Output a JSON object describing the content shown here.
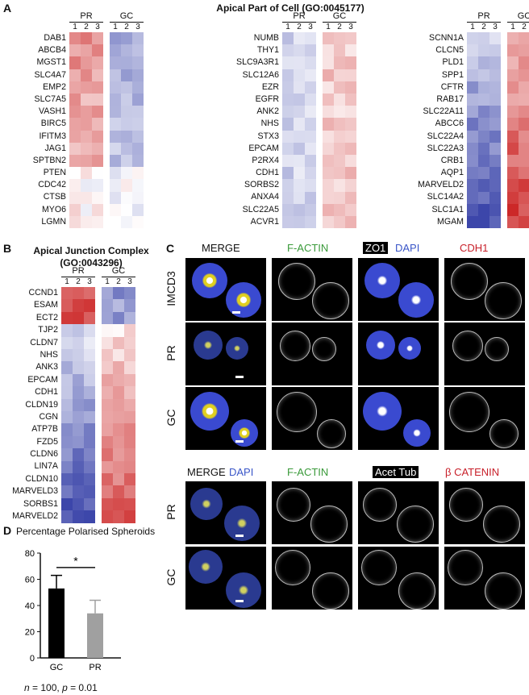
{
  "panel_letters": {
    "a": "A",
    "b": "B",
    "c": "C",
    "d": "D"
  },
  "panel_a": {
    "title": "Apical Part of Cell (GO:0045177)",
    "group_labels": [
      "PR",
      "GC"
    ],
    "replicates": [
      "1",
      "2",
      "3"
    ],
    "heatmap_left": {
      "genes": [
        "DAB1",
        "ABCB4",
        "MGST1",
        "SLC4A7",
        "EMP2",
        "SLC7A5",
        "VASH1",
        "BIRC5",
        "IFITM3",
        "JAG1",
        "SPTBN2",
        "PTEN",
        "CDC42",
        "CTSB",
        "MYO6",
        "LGMN"
      ]
    },
    "heatmap_mid": {
      "genes": [
        "NUMB",
        "THY1",
        "SLC9A3R1",
        "SLC12A6",
        "EZR",
        "EGFR",
        "ANK2",
        "NHS",
        "STX3",
        "EPCAM",
        "P2RX4",
        "CDH1",
        "SORBS2",
        "ANXA4",
        "SLC22A5",
        "ACVR1"
      ]
    },
    "heatmap_right": {
      "genes": [
        "SCNN1A",
        "CLCN5",
        "PLD1",
        "SPP1",
        "CFTR",
        "RAB17",
        "SLC22A11",
        "ABCC6",
        "SLC22A4",
        "SLC22A3",
        "CRB1",
        "AQP1",
        "MARVELD2",
        "SLC14A2",
        "SLC1A1",
        "MGAM"
      ]
    }
  },
  "panel_b": {
    "title_line1": "Apical Junction Complex",
    "title_line2": "(GO:0043296)",
    "group_labels": [
      "PR",
      "GC"
    ],
    "replicates": [
      "1",
      "2",
      "3"
    ],
    "genes": [
      "CCND1",
      "ESAM",
      "ECT2",
      "TJP2",
      "CLDN7",
      "NHS",
      "ANK3",
      "EPCAM",
      "CDH1",
      "CLDN19",
      "CGN",
      "ATP7B",
      "FZD5",
      "CLDN6",
      "LIN7A",
      "CLDN10",
      "MARVELD3",
      "SORBS1",
      "MARVELD2"
    ]
  },
  "panel_c": {
    "top_headers": [
      {
        "text": "MERGE",
        "color": "#111111"
      },
      {
        "text": "F-ACTIN",
        "color": "#3a9a3a"
      },
      {
        "text": "ZO1",
        "color": "#ffffff",
        "boxed": true
      },
      {
        "text": "DAPI",
        "color": "#3a56c8"
      },
      {
        "text": "CDH1",
        "color": "#c8202a"
      }
    ],
    "top_rows": [
      "IMCD3",
      "PR",
      "GC"
    ],
    "bottom_headers": [
      {
        "text": "MERGE",
        "color": "#111111"
      },
      {
        "text": "DAPI",
        "color": "#3a56c8"
      },
      {
        "text": "F-ACTIN",
        "color": "#3a9a3a"
      },
      {
        "text": "Acet Tub",
        "color": "#ffffff",
        "boxed": true
      },
      {
        "text": "β CATENIN",
        "color": "#c8202a"
      }
    ],
    "bottom_rows": [
      "PR",
      "GC"
    ]
  },
  "chart_data": {
    "type": "bar",
    "title": "Percentage Polarised Spheroids",
    "categories": [
      "GC",
      "PR"
    ],
    "values": [
      53,
      34
    ],
    "errors": [
      10,
      10
    ],
    "colors": [
      "#000000",
      "#a0a0a0"
    ],
    "ylim": [
      0,
      80
    ],
    "yticks": [
      "0",
      "20",
      "40",
      "60",
      "80"
    ],
    "significance": "*",
    "footnote_n": "n",
    "footnote_rest": " = 100, ",
    "footnote_p": "p",
    "footnote_end": " = 0.01"
  }
}
